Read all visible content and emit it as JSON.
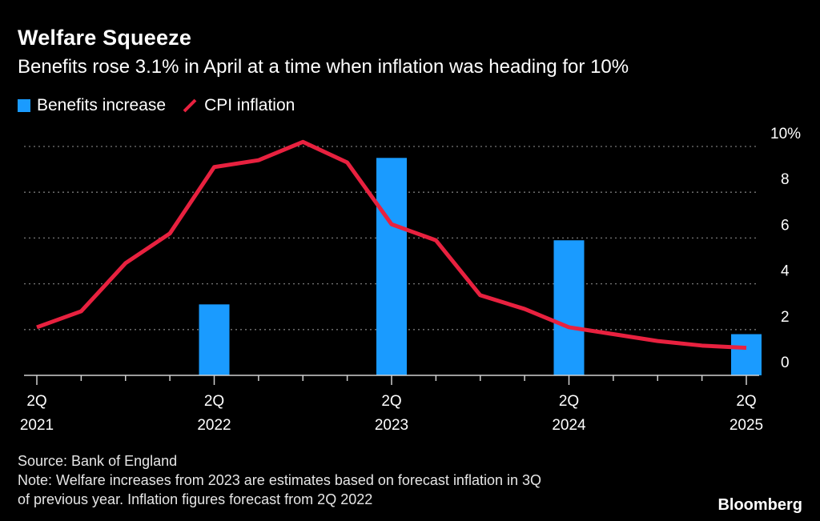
{
  "chart_data": {
    "type": "bar+line",
    "title": "Welfare Squeeze",
    "subtitle": "Benefits rose 3.1% in April at a time when inflation was heading for 10%",
    "legend": [
      {
        "name": "Benefits increase",
        "kind": "bar",
        "color": "#1a9bff"
      },
      {
        "name": "CPI inflation",
        "kind": "line",
        "color": "#e8213f"
      }
    ],
    "x_categories": [
      "2Q 2021",
      "3Q 2021",
      "4Q 2021",
      "1Q 2022",
      "2Q 2022",
      "3Q 2022",
      "4Q 2022",
      "1Q 2023",
      "2Q 2023",
      "3Q 2023",
      "4Q 2023",
      "1Q 2024",
      "2Q 2024",
      "3Q 2024",
      "4Q 2024",
      "1Q 2025",
      "2Q 2025"
    ],
    "x_tick_labels": [
      {
        "index": 0,
        "line1": "2Q",
        "line2": "2021"
      },
      {
        "index": 4,
        "line1": "2Q",
        "line2": "2022"
      },
      {
        "index": 8,
        "line1": "2Q",
        "line2": "2023"
      },
      {
        "index": 12,
        "line1": "2Q",
        "line2": "2024"
      },
      {
        "index": 16,
        "line1": "2Q",
        "line2": "2025"
      }
    ],
    "series": [
      {
        "name": "Benefits increase",
        "type": "bar",
        "points": [
          {
            "index": 4,
            "value": 3.1
          },
          {
            "index": 8,
            "value": 9.5
          },
          {
            "index": 12,
            "value": 5.9
          },
          {
            "index": 16,
            "value": 1.8
          }
        ]
      },
      {
        "name": "CPI inflation",
        "type": "line",
        "values": [
          2.1,
          2.8,
          4.9,
          6.2,
          9.1,
          9.4,
          10.2,
          9.3,
          6.6,
          5.9,
          3.5,
          2.9,
          2.1,
          1.8,
          1.5,
          1.3,
          1.2
        ]
      }
    ],
    "y_ticks": [
      "0",
      "2",
      "4",
      "6",
      "8",
      "10%"
    ],
    "ylim": [
      0,
      10
    ],
    "grid": true,
    "y_axis_side": "right"
  },
  "footer": {
    "source": "Source: Bank of England",
    "note_line1": "Note: Welfare increases from 2023 are estimates based on forecast inflation in 3Q",
    "note_line2": "of previous year. Inflation figures forecast from 2Q 2022"
  },
  "brand": "Bloomberg",
  "colors": {
    "bar": "#1a9bff",
    "line": "#e8213f",
    "grid": "#777777",
    "background": "#000000"
  }
}
